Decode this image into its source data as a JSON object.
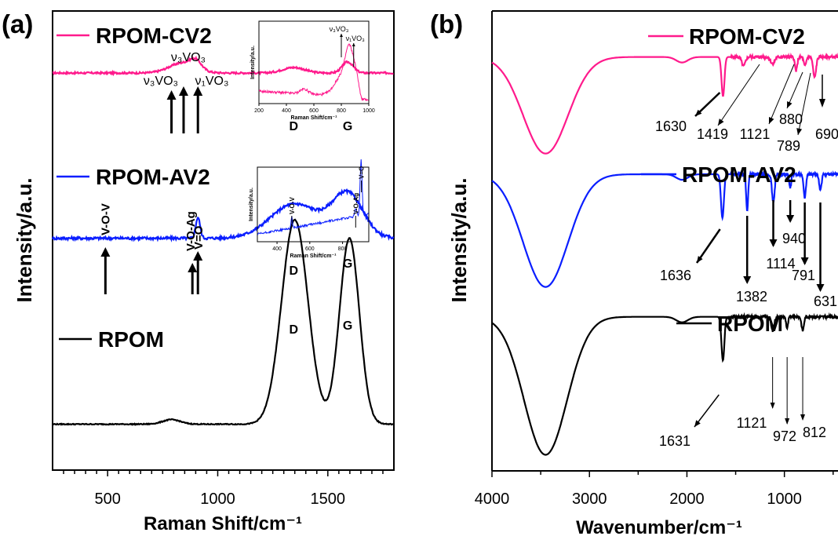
{
  "figure": {
    "panel_a_letter": "(a)",
    "panel_b_letter": "(b)"
  },
  "chart_data": [
    {
      "type": "line",
      "panel": "(a)",
      "title": "",
      "xlabel": "Raman Shift/cm⁻¹",
      "ylabel": "Intensity/a.u.",
      "xlim": [
        250,
        1800
      ],
      "x_ticks": [
        500,
        1000,
        1500
      ],
      "y_ticks_shown": false,
      "grid": false,
      "legend": "inline per trace",
      "series": [
        {
          "name": "RPOM-CV2",
          "color": "#ff1a8c",
          "baseline": 0.865,
          "noise": 0.004,
          "peaks": [
            {
              "x": 840,
              "height": 0.022,
              "width": 60
            },
            {
              "x": 900,
              "height": 0.018,
              "width": 25
            },
            {
              "x": 1345,
              "height": 0.012,
              "width": 50
            },
            {
              "x": 1590,
              "height": 0.024,
              "width": 25
            }
          ],
          "annotations": [
            {
              "text": "ν₃VO₃",
              "x": 790
            },
            {
              "text": "ν₃VO₃",
              "x": 845
            },
            {
              "text": "ν₁VO₃",
              "x": 910
            },
            {
              "text": "D",
              "x": 1345
            },
            {
              "text": "G",
              "x": 1590
            }
          ]
        },
        {
          "name": "RPOM-AV2",
          "color": "#0a1eff",
          "baseline": 0.505,
          "noise": 0.006,
          "peaks": [
            {
              "x": 910,
              "height": 0.045,
              "width": 10
            },
            {
              "x": 1350,
              "height": 0.075,
              "width": 110
            },
            {
              "x": 1590,
              "height": 0.095,
              "width": 70
            }
          ],
          "annotations": [
            {
              "text": "V-O-V",
              "x": 490
            },
            {
              "text": "V-O-Ag",
              "x": 885
            },
            {
              "text": "V=O",
              "x": 910
            },
            {
              "text": "D",
              "x": 1345
            },
            {
              "text": "G",
              "x": 1590
            }
          ]
        },
        {
          "name": "RPOM",
          "color": "#000000",
          "baseline": 0.1,
          "noise": 0.002,
          "peaks": [
            {
              "x": 790,
              "height": 0.01,
              "width": 40
            },
            {
              "x": 1350,
              "height": 0.445,
              "width": 60
            },
            {
              "x": 1598,
              "height": 0.405,
              "width": 45
            }
          ],
          "annotations": [
            {
              "text": "D",
              "x": 1345
            },
            {
              "text": "G",
              "x": 1590
            }
          ]
        }
      ],
      "insets": [
        {
          "belongs_to": "RPOM-CV2",
          "xlabel": "Raman Shift/cm⁻¹",
          "ylabel": "Intensity/a.u.",
          "xlim": [
            200,
            1000
          ],
          "x_ticks": [
            200,
            400,
            600,
            800,
            1000
          ],
          "color": "#ff1a8c",
          "annotations": [
            {
              "text": "ν₃VO₃",
              "x": 800
            },
            {
              "text": "ν₁VO₃",
              "x": 890
            }
          ]
        },
        {
          "belongs_to": "RPOM-AV2",
          "xlabel": "Raman Shift/cm⁻¹",
          "ylabel": "Intensity/a.u.",
          "xlim": [
            280,
            960
          ],
          "x_ticks": [
            400,
            600,
            800
          ],
          "color": "#0a1eff",
          "annotations": [
            {
              "text": "V-O-V",
              "x": 490
            },
            {
              "text": "V-O-Ag",
              "x": 880
            },
            {
              "text": "V=O",
              "x": 915
            }
          ]
        }
      ]
    },
    {
      "type": "line",
      "panel": "(b)",
      "title": "",
      "xlabel": "Wavenumber/cm⁻¹",
      "ylabel": "Intensity/a.u.",
      "xlim": [
        4000,
        450
      ],
      "x_ticks": [
        4000,
        3000,
        2000,
        1000
      ],
      "y_ticks_shown": false,
      "grid": false,
      "legend": "inline per trace",
      "series": [
        {
          "name": "RPOM-CV2",
          "color": "#ff1a8c",
          "baseline": 0.9,
          "broad_band": {
            "x": 3450,
            "depth": 0.21,
            "width": 230
          },
          "dips": [
            {
              "x": 1630,
              "depth": 0.085,
              "width": 15
            },
            {
              "x": 1419,
              "depth": 0.02,
              "width": 18
            },
            {
              "x": 1121,
              "depth": 0.015,
              "width": 20
            },
            {
              "x": 880,
              "depth": 0.03,
              "width": 12
            },
            {
              "x": 789,
              "depth": 0.02,
              "width": 12
            },
            {
              "x": 690,
              "depth": 0.045,
              "width": 15
            }
          ],
          "labels": [
            "1630",
            "1419",
            "1121",
            "880",
            "789",
            "690"
          ]
        },
        {
          "name": "RPOM-AV2",
          "color": "#0a1eff",
          "baseline": 0.645,
          "broad_band": {
            "x": 3450,
            "depth": 0.245,
            "width": 230
          },
          "dips": [
            {
              "x": 1636,
              "depth": 0.095,
              "width": 15
            },
            {
              "x": 1382,
              "depth": 0.08,
              "width": 10
            },
            {
              "x": 1114,
              "depth": 0.06,
              "width": 14
            },
            {
              "x": 940,
              "depth": 0.03,
              "width": 10
            },
            {
              "x": 791,
              "depth": 0.05,
              "width": 12
            },
            {
              "x": 631,
              "depth": 0.035,
              "width": 12
            }
          ],
          "labels": [
            "1636",
            "1382",
            "1114",
            "940",
            "791",
            "631"
          ]
        },
        {
          "name": "RPOM",
          "color": "#000000",
          "baseline": 0.335,
          "broad_band": {
            "x": 3450,
            "depth": 0.3,
            "width": 220
          },
          "dips": [
            {
              "x": 1631,
              "depth": 0.095,
              "width": 15
            },
            {
              "x": 1121,
              "depth": 0.03,
              "width": 15
            },
            {
              "x": 972,
              "depth": 0.025,
              "width": 10
            },
            {
              "x": 812,
              "depth": 0.03,
              "width": 12
            }
          ],
          "labels": [
            "1631",
            "1121",
            "972",
            "812"
          ]
        }
      ]
    }
  ]
}
